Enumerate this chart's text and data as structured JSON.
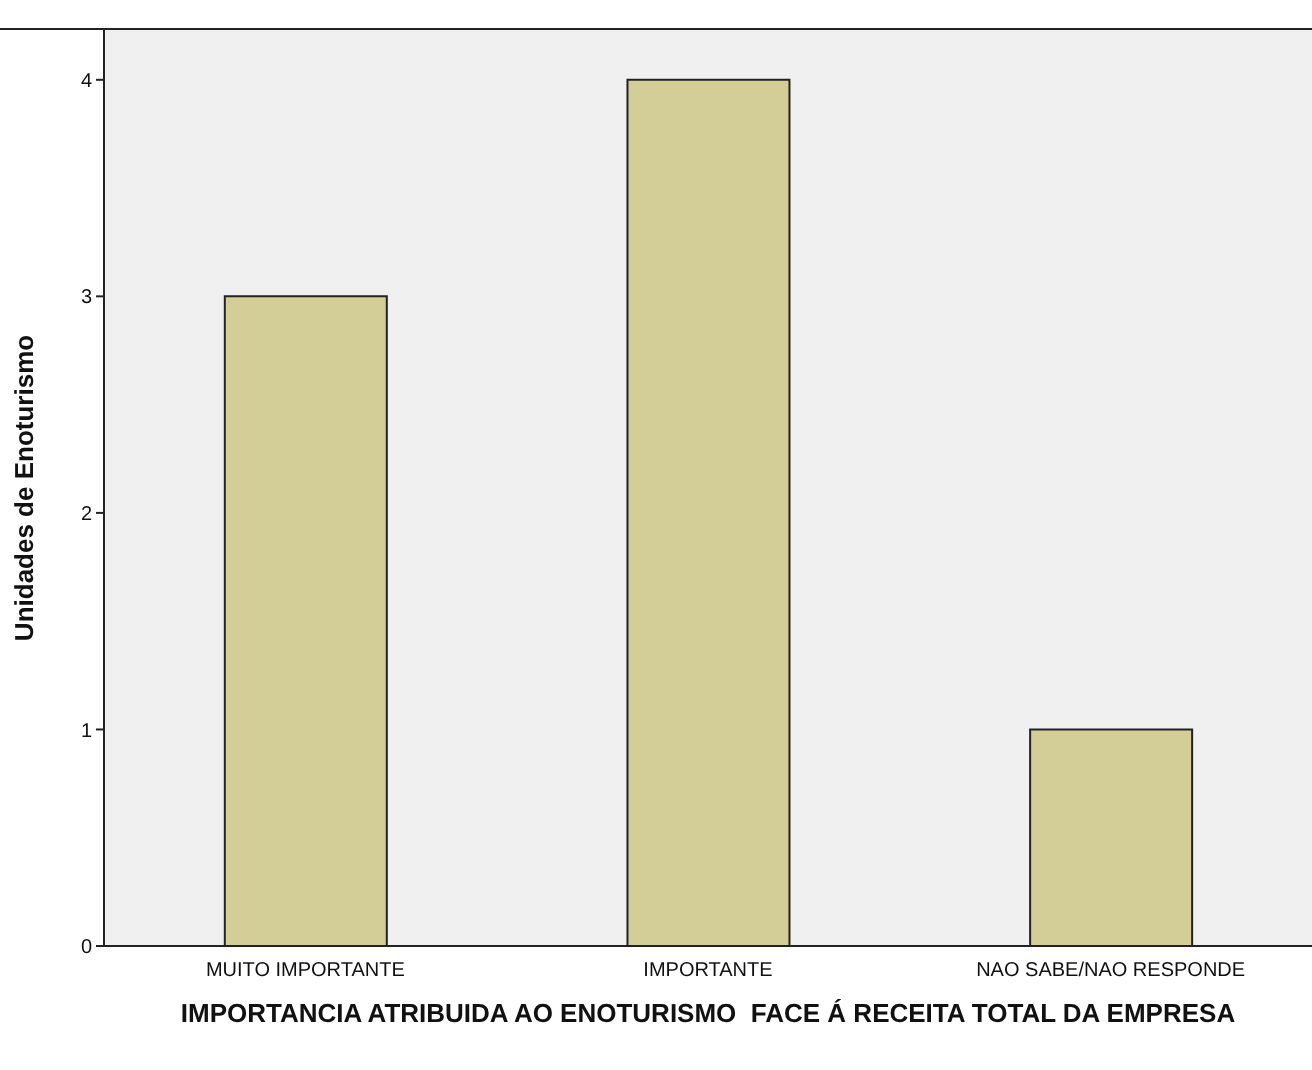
{
  "chart_data": {
    "type": "bar",
    "xlabel": "IMPORTANCIA ATRIBUIDA AO ENOTURISMO  FACE Á RECEITA TOTAL DA EMPRESA",
    "ylabel": "Unidades de Enoturismo",
    "categories": [
      "MUITO IMPORTANTE",
      "IMPORTANTE",
      "NAO SABE/NAO RESPONDE"
    ],
    "values": [
      3,
      4,
      1
    ],
    "color": "#d3ce98",
    "ylim": [
      0,
      4.23
    ],
    "yticks": [
      0,
      1,
      2,
      3,
      4
    ],
    "grid": false,
    "legend": false
  }
}
